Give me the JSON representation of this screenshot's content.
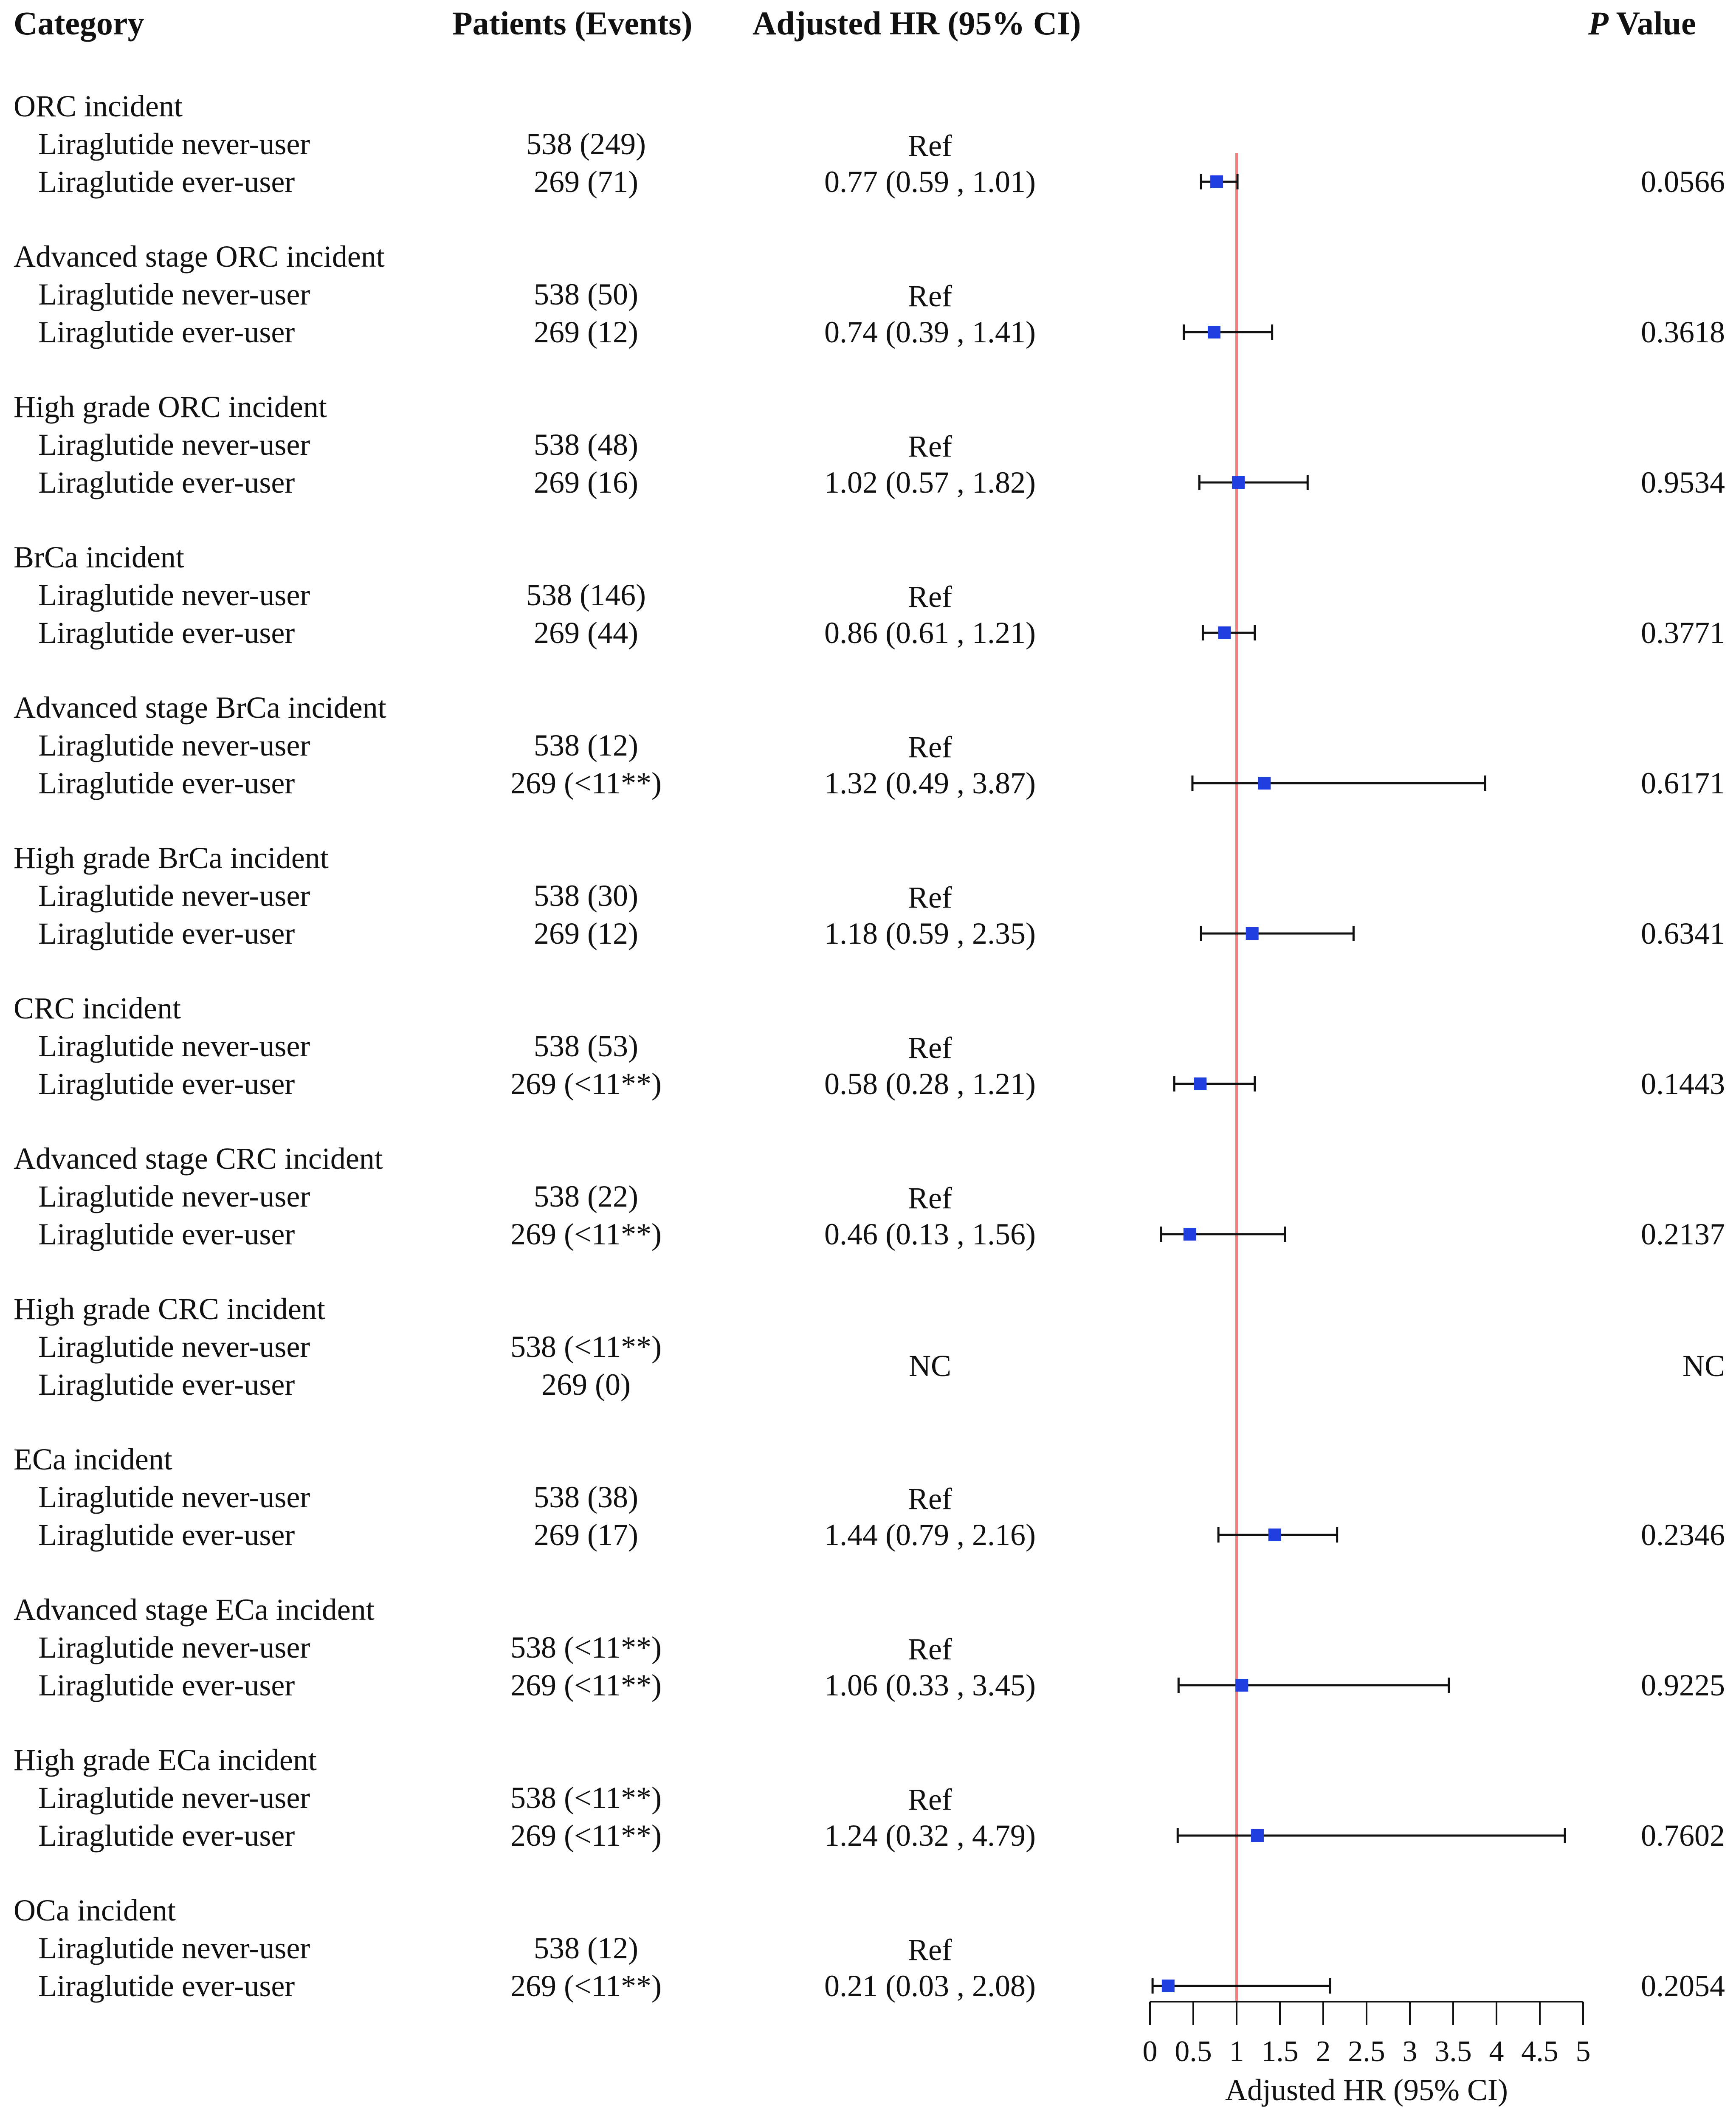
{
  "headers": {
    "category": "Category",
    "patients": "Patients (Events)",
    "hr": "Adjusted HR (95% CI)",
    "p_prefix": "P",
    "p_suffix": "Value"
  },
  "chart_data": {
    "type": "forest",
    "xlabel": "Adjusted HR (95% CI)",
    "xlim": [
      0,
      5
    ],
    "x_ticks": [
      "0",
      "0.5",
      "1",
      "1.5",
      "2",
      "2.5",
      "3",
      "3.5",
      "4",
      "4.5",
      "5"
    ],
    "reference_line": 1,
    "reference_color": "#f08080",
    "point_color": "#1f3fe0",
    "groups": [
      {
        "title": "ORC incident",
        "never_label": "Liraglutide never-user",
        "ever_label": "Liraglutide ever-user",
        "never_n": "538 (249)",
        "ever_n": "269 (71)",
        "ref": "Ref",
        "hr_text": "0.77 (0.59 , 1.01)",
        "hr": 0.77,
        "lo": 0.59,
        "hi": 1.01,
        "p": "0.0566"
      },
      {
        "title": "Advanced stage ORC incident",
        "never_label": "Liraglutide never-user",
        "ever_label": "Liraglutide ever-user",
        "never_n": "538 (50)",
        "ever_n": "269 (12)",
        "ref": "Ref",
        "hr_text": "0.74 (0.39 , 1.41)",
        "hr": 0.74,
        "lo": 0.39,
        "hi": 1.41,
        "p": "0.3618"
      },
      {
        "title": "High grade ORC incident",
        "never_label": "Liraglutide never-user",
        "ever_label": "Liraglutide ever-user",
        "never_n": "538 (48)",
        "ever_n": "269 (16)",
        "ref": "Ref",
        "hr_text": "1.02 (0.57 , 1.82)",
        "hr": 1.02,
        "lo": 0.57,
        "hi": 1.82,
        "p": "0.9534"
      },
      {
        "title": "BrCa incident",
        "never_label": "Liraglutide never-user",
        "ever_label": "Liraglutide ever-user",
        "never_n": "538 (146)",
        "ever_n": "269 (44)",
        "ref": "Ref",
        "hr_text": "0.86 (0.61 , 1.21)",
        "hr": 0.86,
        "lo": 0.61,
        "hi": 1.21,
        "p": "0.3771"
      },
      {
        "title": "Advanced stage BrCa incident",
        "never_label": "Liraglutide never-user",
        "ever_label": "Liraglutide ever-user",
        "never_n": "538 (12)",
        "ever_n": "269 (<11**)",
        "ref": "Ref",
        "hr_text": "1.32 (0.49 , 3.87)",
        "hr": 1.32,
        "lo": 0.49,
        "hi": 3.87,
        "p": "0.6171"
      },
      {
        "title": "High grade BrCa incident",
        "never_label": "Liraglutide never-user",
        "ever_label": "Liraglutide ever-user",
        "never_n": "538 (30)",
        "ever_n": "269 (12)",
        "ref": "Ref",
        "hr_text": "1.18 (0.59 , 2.35)",
        "hr": 1.18,
        "lo": 0.59,
        "hi": 2.35,
        "p": "0.6341"
      },
      {
        "title": "CRC incident",
        "never_label": "Liraglutide never-user",
        "ever_label": "Liraglutide ever-user",
        "never_n": "538 (53)",
        "ever_n": "269 (<11**)",
        "ref": "Ref",
        "hr_text": "0.58 (0.28 , 1.21)",
        "hr": 0.58,
        "lo": 0.28,
        "hi": 1.21,
        "p": "0.1443"
      },
      {
        "title": "Advanced stage CRC incident",
        "never_label": "Liraglutide never-user",
        "ever_label": "Liraglutide ever-user",
        "never_n": "538 (22)",
        "ever_n": "269 (<11**)",
        "ref": "Ref",
        "hr_text": "0.46 (0.13 , 1.56)",
        "hr": 0.46,
        "lo": 0.13,
        "hi": 1.56,
        "p": "0.2137"
      },
      {
        "title": "High grade CRC incident",
        "never_label": "Liraglutide never-user",
        "ever_label": "Liraglutide ever-user",
        "never_n": "538 (<11**)",
        "ever_n": "269 (0)",
        "ref": "",
        "hr_text": "NC",
        "hr": null,
        "lo": null,
        "hi": null,
        "p": "NC"
      },
      {
        "title": "ECa incident",
        "never_label": "Liraglutide never-user",
        "ever_label": "Liraglutide ever-user",
        "never_n": "538 (38)",
        "ever_n": "269 (17)",
        "ref": "Ref",
        "hr_text": "1.44 (0.79 , 2.16)",
        "hr": 1.44,
        "lo": 0.79,
        "hi": 2.16,
        "p": "0.2346"
      },
      {
        "title": "Advanced stage ECa incident",
        "never_label": "Liraglutide never-user",
        "ever_label": "Liraglutide ever-user",
        "never_n": "538 (<11**)",
        "ever_n": "269 (<11**)",
        "ref": "Ref",
        "hr_text": "1.06 (0.33 , 3.45)",
        "hr": 1.06,
        "lo": 0.33,
        "hi": 3.45,
        "p": "0.9225"
      },
      {
        "title": "High grade ECa incident",
        "never_label": "Liraglutide never-user",
        "ever_label": "Liraglutide ever-user",
        "never_n": "538 (<11**)",
        "ever_n": "269 (<11**)",
        "ref": "Ref",
        "hr_text": "1.24 (0.32 , 4.79)",
        "hr": 1.24,
        "lo": 0.32,
        "hi": 4.79,
        "p": "0.7602"
      },
      {
        "title": "OCa incident",
        "never_label": "Liraglutide never-user",
        "ever_label": "Liraglutide ever-user",
        "never_n": "538 (12)",
        "ever_n": "269 (<11**)",
        "ref": "Ref",
        "hr_text": "0.21 (0.03 , 2.08)",
        "hr": 0.21,
        "lo": 0.03,
        "hi": 2.08,
        "p": "0.2054"
      }
    ]
  }
}
